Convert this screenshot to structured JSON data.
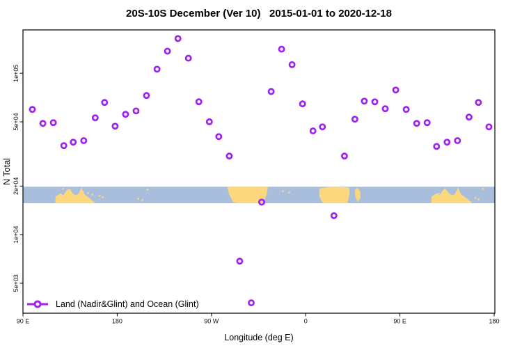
{
  "figure": {
    "background": "#ffffff"
  },
  "legend": {
    "label": "Land (Nadir&Glint) and Ocean (Glint)"
  },
  "chart_data": {
    "type": "scatter",
    "title": "20S-10S December (Ver 10)   2015-01-01 to 2020-12-18",
    "xlabel": "Longitude (deg E)",
    "ylabel": "N Total",
    "grid": false,
    "legend_position": "bottom-left",
    "marker": "open-circle",
    "x_axis": {
      "min": 90,
      "max": 540,
      "note": "longitude wraps eastward: 90E to 180 to 90W to 0 to 90E to 180",
      "ticks": [
        {
          "lon": 90,
          "label": "90 E"
        },
        {
          "lon": 180,
          "label": "180"
        },
        {
          "lon": 270,
          "label": "90 W"
        },
        {
          "lon": 360,
          "label": "0"
        },
        {
          "lon": 450,
          "label": "90 E"
        },
        {
          "lon": 540,
          "label": "180"
        }
      ]
    },
    "y_axis": {
      "scale": "log",
      "min": 3260,
      "max": 185500,
      "ticks": [
        {
          "value": 100000,
          "label": "1e+05"
        },
        {
          "value": 50000,
          "label": "5e+04"
        },
        {
          "value": 20000,
          "label": "2e+04"
        },
        {
          "value": 10000,
          "label": "1e+04"
        },
        {
          "value": 5000,
          "label": "5e+03"
        }
      ]
    },
    "series": [
      {
        "name": "Land (Nadir&Glint) and Ocean (Glint)",
        "marker": "open-circle",
        "color": "#A020F0",
        "points": [
          [
            99,
            59700
          ],
          [
            109,
            48900
          ],
          [
            119,
            49400
          ],
          [
            129,
            35600
          ],
          [
            138,
            37400
          ],
          [
            148,
            38200
          ],
          [
            159,
            53000
          ],
          [
            168,
            65900
          ],
          [
            178,
            47000
          ],
          [
            188,
            55600
          ],
          [
            198,
            58400
          ],
          [
            208,
            72800
          ],
          [
            218,
            106000
          ],
          [
            228,
            137000
          ],
          [
            238,
            164000
          ],
          [
            248,
            124000
          ],
          [
            258,
            66600
          ],
          [
            268,
            50000
          ],
          [
            277,
            40500
          ],
          [
            287,
            30700
          ],
          [
            297,
            6850
          ],
          [
            308,
            3780
          ],
          [
            318,
            15900
          ],
          [
            327,
            77000
          ],
          [
            337,
            141000
          ],
          [
            347,
            113000
          ],
          [
            357,
            64600
          ],
          [
            367,
            43900
          ],
          [
            376,
            46500
          ],
          [
            387,
            13100
          ],
          [
            397,
            30700
          ],
          [
            407,
            51900
          ],
          [
            416,
            67200
          ],
          [
            426,
            66500
          ],
          [
            436,
            60300
          ],
          [
            446,
            78700
          ],
          [
            456,
            59700
          ],
          [
            466,
            48900
          ],
          [
            476,
            49400
          ],
          [
            485,
            35200
          ],
          [
            495,
            37400
          ],
          [
            505,
            38200
          ],
          [
            516,
            53500
          ],
          [
            525,
            65900
          ],
          [
            535,
            46500
          ]
        ]
      }
    ],
    "map_band": {
      "description": "land/ocean map strip for latitude band 20S-10S",
      "value_top": 19800,
      "value_bottom": 15650,
      "ocean_color": "#A9BEDC",
      "land_color": "#FBD87E",
      "land_segments": [
        {
          "name": "Australia",
          "lon_start": 121,
          "lon_end": 159,
          "shape": "north-coast"
        },
        {
          "name": "South America",
          "lon_start": 285,
          "lon_end": 324,
          "shape": "west-slant"
        },
        {
          "name": "Africa",
          "lon_start": 373,
          "lon_end": 402,
          "shape": "block"
        },
        {
          "name": "Madagascar",
          "lon_start": 405,
          "lon_end": 413,
          "shape": "island"
        },
        {
          "name": "Australia",
          "lon_start": 480,
          "lon_end": 519,
          "shape": "north-coast"
        }
      ],
      "speckles_lon": [
        128,
        135,
        147,
        152,
        156,
        163,
        166,
        200,
        204,
        209,
        338,
        344,
        487,
        494,
        500,
        522,
        525,
        529
      ]
    }
  }
}
